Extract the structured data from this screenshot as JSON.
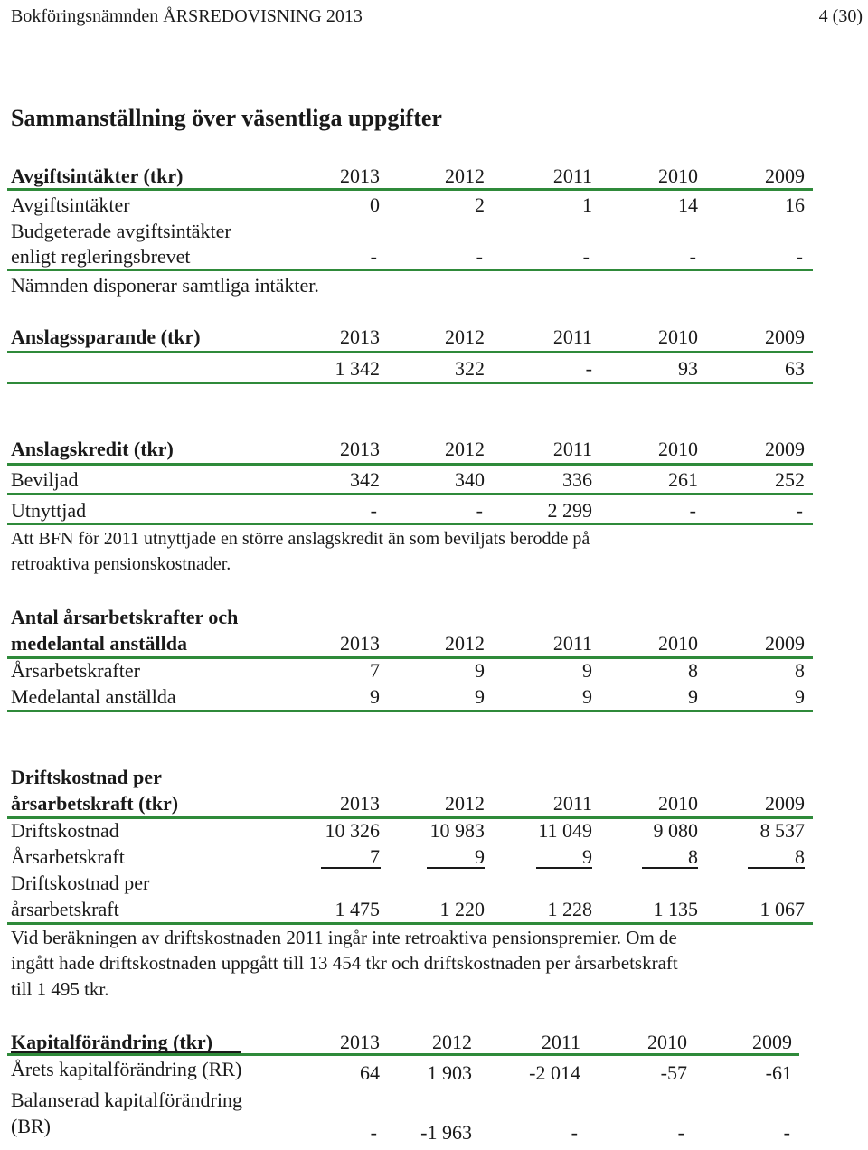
{
  "header": {
    "left": "Bokföringsnämnden ÅRSREDOVISNING 2013",
    "right": "4 (30)"
  },
  "title": "Sammanställning över väsentliga uppgifter",
  "years": [
    "2013",
    "2012",
    "2011",
    "2010",
    "2009"
  ],
  "avgift": {
    "heading": "Avgiftsintäkter (tkr)",
    "rows": [
      {
        "label": "Avgiftsintäkter",
        "values": [
          "0",
          "2",
          "1",
          "14",
          "16"
        ]
      },
      {
        "label1": "Budgeterade avgiftsintäkter",
        "label2": "enligt regleringsbrevet",
        "values": [
          "-",
          "-",
          "-",
          "-",
          "-"
        ]
      }
    ],
    "note": "Nämnden disponerar samtliga intäkter."
  },
  "sparande": {
    "heading": "Anslagssparande (tkr)",
    "values": [
      "1 342",
      "322",
      "-",
      "93",
      "63"
    ]
  },
  "kredit": {
    "heading": "Anslagskredit (tkr)",
    "rows": [
      {
        "label": "Beviljad",
        "values": [
          "342",
          "340",
          "336",
          "261",
          "252"
        ]
      },
      {
        "label": "Utnyttjad",
        "values": [
          "-",
          "-",
          "2 299",
          "-",
          "-"
        ]
      }
    ],
    "note_lines": [
      "Att BFN för 2011 utnyttjade en större anslagskredit än som beviljats berodde på",
      "retroaktiva pensionskostnader."
    ]
  },
  "antal": {
    "heading1": "Antal årsarbetskrafter och",
    "heading2": "medelantal anställda",
    "rows": [
      {
        "label": "Årsarbetskrafter",
        "values": [
          "7",
          "9",
          "9",
          "8",
          "8"
        ]
      },
      {
        "label": "Medelantal anställda",
        "values": [
          "9",
          "9",
          "9",
          "9",
          "9"
        ]
      }
    ]
  },
  "drift": {
    "heading1": "Driftskostnad per",
    "heading2": "årsarbetskraft (tkr)",
    "rows": [
      {
        "label": "Driftskostnad",
        "values": [
          "10 326",
          "10 983",
          "11 049",
          "9 080",
          "8 537"
        ]
      },
      {
        "label": "Årsarbetskraft",
        "values": [
          "7",
          "9",
          "9",
          "8",
          "8"
        ]
      },
      {
        "label1": "Driftskostnad per",
        "label2": "årsarbetskraft",
        "values": [
          "1 475",
          "1 220",
          "1 228",
          "1 135",
          "1 067"
        ]
      }
    ],
    "note_lines": [
      "Vid beräkningen av driftskostnaden 2011 ingår inte retroaktiva pensionspremier. Om de",
      "ingått hade driftskostnaden uppgått till 13 454 tkr och driftskostnaden per årsarbetskraft",
      "till 1 495 tkr."
    ]
  },
  "kapital": {
    "heading": "Kapitalförändring (tkr)",
    "years": [
      "2013",
      "2012",
      "2011",
      "2010",
      "2009"
    ],
    "rows": [
      {
        "label": "Årets kapitalförändring (RR)",
        "values": [
          "64",
          "1 903",
          "-2 014",
          "-57",
          "-61"
        ]
      },
      {
        "label1": "Balanserad kapitalförändring",
        "label2": "(BR)",
        "values": [
          "-",
          "-1 963",
          "-",
          "-",
          "-"
        ]
      }
    ]
  }
}
